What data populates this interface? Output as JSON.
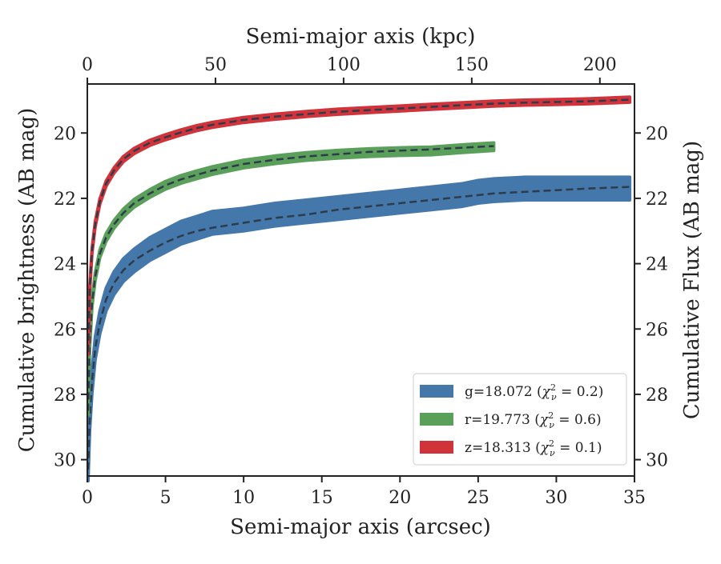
{
  "chart_data": {
    "type": "line",
    "title": "",
    "xlabel": "Semi-major axis (arcsec)",
    "ylabel": "Cumulative brightness (AB mag)",
    "x2label": "Semi-major axis (kpc)",
    "y2label": "Cumulative Flux (AB mag)",
    "xlim": [
      0,
      35
    ],
    "ylim": [
      30.5,
      18.5
    ],
    "y_inverted": true,
    "x2lim": [
      0,
      213.5
    ],
    "x_ticks": [
      "0",
      "5",
      "10",
      "15",
      "20",
      "25",
      "30",
      "35"
    ],
    "y_ticks": [
      "20",
      "22",
      "24",
      "26",
      "28",
      "30"
    ],
    "x2_ticks": [
      "0",
      "50",
      "100",
      "150",
      "200"
    ],
    "y2_ticks": [
      "20",
      "22",
      "24",
      "26",
      "28",
      "30"
    ],
    "legend_position": "lower-right",
    "grid": false,
    "series": [
      {
        "name": "g=18.072 ($\\chi^2_\\nu = 0.2$)",
        "legend_main": "g=18.072 (",
        "legend_chi": "χ",
        "legend_sub": "ν",
        "legend_sup": "2",
        "legend_tail": " = 0.2)",
        "color": "#4477aa",
        "band_width": 0.35,
        "x": [
          0.05,
          0.15,
          0.3,
          0.5,
          0.8,
          1.2,
          1.7,
          2.3,
          3,
          4,
          5,
          6,
          7,
          8,
          10,
          12,
          14,
          16,
          18,
          20,
          22,
          24,
          25,
          26,
          28,
          30,
          32,
          34.7
        ],
        "y": [
          30.3,
          28.8,
          27.6,
          26.6,
          25.8,
          25.1,
          24.6,
          24.2,
          23.9,
          23.55,
          23.3,
          23.05,
          22.9,
          22.75,
          22.65,
          22.5,
          22.4,
          22.3,
          22.2,
          22.1,
          22.0,
          21.9,
          21.8,
          21.75,
          21.7,
          21.7,
          21.7,
          21.7
        ],
        "model_x": [
          0.05,
          0.15,
          0.3,
          0.5,
          0.8,
          1.2,
          1.7,
          2.3,
          3,
          4,
          5,
          6,
          7,
          8,
          10,
          12,
          14,
          16,
          18,
          20,
          22,
          24,
          26,
          28,
          30,
          32,
          34.7
        ],
        "model_y": [
          30.3,
          28.8,
          27.6,
          26.6,
          25.8,
          25.1,
          24.6,
          24.2,
          23.9,
          23.6,
          23.35,
          23.15,
          23.0,
          22.9,
          22.75,
          22.6,
          22.5,
          22.35,
          22.25,
          22.15,
          22.05,
          21.95,
          21.85,
          21.8,
          21.75,
          21.7,
          21.65
        ]
      },
      {
        "name": "r=19.773 ($\\chi^2_\\nu = 0.6$)",
        "legend_main": "r=19.773 (",
        "legend_chi": "χ",
        "legend_sub": "ν",
        "legend_sup": "2",
        "legend_tail": " = 0.6)",
        "color": "#5aa05a",
        "band_width": 0.12,
        "x": [
          0.05,
          0.15,
          0.3,
          0.5,
          0.8,
          1.2,
          1.7,
          2.3,
          3,
          4,
          5,
          6,
          7,
          8,
          10,
          12,
          14,
          16,
          18,
          20,
          22,
          24,
          26
        ],
        "y": [
          28.5,
          26.5,
          25.2,
          24.4,
          23.7,
          23.2,
          22.8,
          22.45,
          22.15,
          21.85,
          21.6,
          21.42,
          21.28,
          21.15,
          20.95,
          20.82,
          20.72,
          20.65,
          20.6,
          20.57,
          20.55,
          20.48,
          20.42
        ],
        "model_x": [
          0.05,
          0.15,
          0.3,
          0.5,
          0.8,
          1.2,
          1.7,
          2.3,
          3,
          4,
          5,
          6,
          7,
          8,
          10,
          12,
          14,
          16,
          18,
          20,
          22,
          24,
          26
        ],
        "model_y": [
          28.5,
          26.5,
          25.2,
          24.4,
          23.7,
          23.2,
          22.8,
          22.45,
          22.15,
          21.85,
          21.6,
          21.42,
          21.28,
          21.15,
          20.95,
          20.82,
          20.72,
          20.65,
          20.58,
          20.54,
          20.5,
          20.45,
          20.4
        ]
      },
      {
        "name": "z=18.313 ($\\chi^2_\\nu = 0.1$)",
        "legend_main": "z=18.313 (",
        "legend_chi": "χ",
        "legend_sub": "ν",
        "legend_sup": "2",
        "legend_tail": " = 0.1)",
        "color": "#d1333b",
        "band_width": 0.08,
        "x": [
          0.05,
          0.15,
          0.3,
          0.5,
          0.8,
          1.2,
          1.7,
          2.3,
          3,
          4,
          5,
          6,
          7,
          8,
          10,
          12,
          14,
          16,
          18,
          20,
          22,
          24,
          26,
          28,
          30,
          32,
          34.7
        ],
        "y": [
          26.7,
          24.8,
          23.6,
          22.8,
          22.1,
          21.55,
          21.15,
          20.8,
          20.55,
          20.3,
          20.13,
          19.98,
          19.85,
          19.75,
          19.6,
          19.5,
          19.42,
          19.35,
          19.3,
          19.25,
          19.2,
          19.15,
          19.1,
          19.07,
          19.05,
          19.03,
          18.98
        ],
        "model_x": [
          0.05,
          0.15,
          0.3,
          0.5,
          0.8,
          1.2,
          1.7,
          2.3,
          3,
          4,
          5,
          6,
          7,
          8,
          10,
          12,
          14,
          16,
          18,
          20,
          22,
          24,
          26,
          28,
          30,
          32,
          34.7
        ],
        "model_y": [
          26.7,
          24.8,
          23.6,
          22.8,
          22.1,
          21.55,
          21.15,
          20.8,
          20.55,
          20.3,
          20.13,
          19.98,
          19.85,
          19.75,
          19.6,
          19.5,
          19.42,
          19.35,
          19.3,
          19.25,
          19.2,
          19.15,
          19.1,
          19.07,
          19.05,
          19.03,
          18.98
        ]
      }
    ]
  }
}
